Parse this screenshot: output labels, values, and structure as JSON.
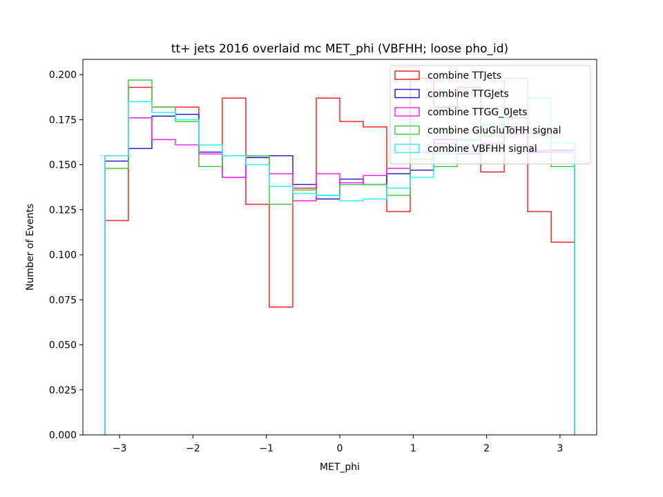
{
  "chart_data": {
    "type": "histogram-step",
    "title": "tt+ jets 2016 overlaid mc MET_phi (VBFHH; loose pho_id)",
    "xlabel": "MET_phi",
    "ylabel": "Number of Events",
    "xlim": [
      -3.5,
      3.5
    ],
    "ylim": [
      0,
      0.2085
    ],
    "bin_edges": [
      -3.2,
      -2.88,
      -2.56,
      -2.24,
      -1.92,
      -1.6,
      -1.28,
      -0.96,
      -0.64,
      -0.32,
      0.0,
      0.32,
      0.64,
      0.96,
      1.28,
      1.6,
      1.92,
      2.24,
      2.56,
      2.88,
      3.2
    ],
    "x_ticks": [
      -3,
      -2,
      -1,
      0,
      1,
      2,
      3
    ],
    "x_tick_labels": [
      "−3",
      "−2",
      "−1",
      "0",
      "1",
      "2",
      "3"
    ],
    "y_ticks": [
      0.0,
      0.025,
      0.05,
      0.075,
      0.1,
      0.125,
      0.15,
      0.175,
      0.2
    ],
    "y_tick_labels": [
      "0.000",
      "0.025",
      "0.050",
      "0.075",
      "0.100",
      "0.125",
      "0.150",
      "0.175",
      "0.200"
    ],
    "legend_position": "top-right",
    "series": [
      {
        "name": "combine TTJets",
        "color": "#ff2020",
        "values": [
          0.119,
          0.193,
          0.182,
          0.182,
          0.149,
          0.187,
          0.128,
          0.071,
          0.137,
          0.187,
          0.174,
          0.171,
          0.124,
          0.198,
          0.182,
          0.193,
          0.146,
          0.176,
          0.124,
          0.107
        ]
      },
      {
        "name": "combine TTGJets",
        "color": "#2020d0",
        "values": [
          0.152,
          0.159,
          0.177,
          0.178,
          0.157,
          0.143,
          0.154,
          0.155,
          0.139,
          0.131,
          0.142,
          0.139,
          0.145,
          0.147,
          0.164,
          0.156,
          0.158,
          0.171,
          0.157,
          0.158
        ]
      },
      {
        "name": "combine TTGG_0Jets",
        "color": "#ff20ff",
        "values": [
          0.155,
          0.176,
          0.164,
          0.161,
          0.156,
          0.143,
          0.155,
          0.145,
          0.13,
          0.145,
          0.14,
          0.144,
          0.148,
          0.157,
          0.162,
          0.16,
          0.162,
          0.167,
          0.158,
          0.157
        ]
      },
      {
        "name": "combine GluGluToHH signal",
        "color": "#44cc44",
        "values": [
          0.148,
          0.197,
          0.182,
          0.174,
          0.149,
          0.155,
          0.155,
          0.128,
          0.136,
          0.133,
          0.139,
          0.139,
          0.133,
          0.153,
          0.149,
          0.164,
          0.166,
          0.198,
          0.167,
          0.149
        ]
      },
      {
        "name": "combine VBFHH signal",
        "color": "#30f0f0",
        "values": [
          0.155,
          0.185,
          0.179,
          0.175,
          0.161,
          0.155,
          0.15,
          0.138,
          0.134,
          0.133,
          0.13,
          0.131,
          0.137,
          0.143,
          0.156,
          0.163,
          0.172,
          0.179,
          0.187,
          0.162
        ]
      }
    ]
  }
}
